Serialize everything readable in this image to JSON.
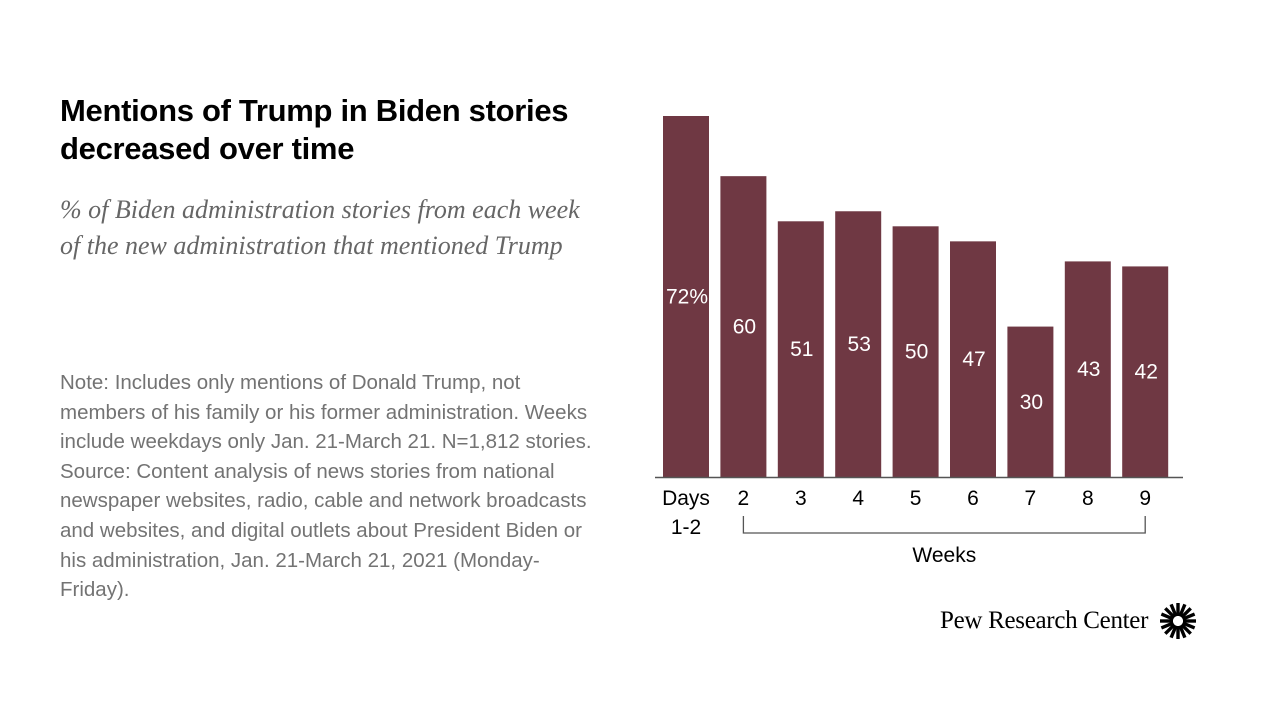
{
  "title": "Mentions of Trump in Biden stories decreased over time",
  "subtitle": "% of Biden administration stories from each week of the new administration that mentioned Trump",
  "notes": [
    "Note: Includes only mentions of Donald Trump, not members of his family or his former administration. Weeks include weekdays only Jan. 21-March 21. N=1,812 stories.",
    "Source: Content analysis of news stories from national newspaper websites, radio, cable and network broadcasts and websites, and digital outlets about President Biden or his administration, Jan. 21-March 21, 2021 (Monday-Friday)."
  ],
  "logo": {
    "text": "Pew Research Center",
    "icon": "pew-sunburst-icon"
  },
  "colors": {
    "bar": "#6f3843",
    "label": "#ffffff",
    "axis": "#555555",
    "text": "#000000"
  },
  "chart_data": {
    "type": "bar",
    "categories": [
      "Days 1-2",
      "2",
      "3",
      "4",
      "5",
      "6",
      "7",
      "8",
      "9"
    ],
    "category_lines": [
      [
        "Days",
        "1-2"
      ],
      [
        "2"
      ],
      [
        "3"
      ],
      [
        "4"
      ],
      [
        "5"
      ],
      [
        "6"
      ],
      [
        "7"
      ],
      [
        "8"
      ],
      [
        "9"
      ]
    ],
    "values": [
      72,
      60,
      51,
      53,
      50,
      47,
      30,
      43,
      42
    ],
    "data_labels": [
      "72%",
      "60",
      "51",
      "53",
      "50",
      "47",
      "30",
      "43",
      "42"
    ],
    "group_label": "Weeks",
    "group_range": [
      "2",
      "9"
    ],
    "ylim": [
      0,
      72
    ],
    "grid": false,
    "legend": "none",
    "title": "",
    "xlabel": "",
    "ylabel": ""
  }
}
